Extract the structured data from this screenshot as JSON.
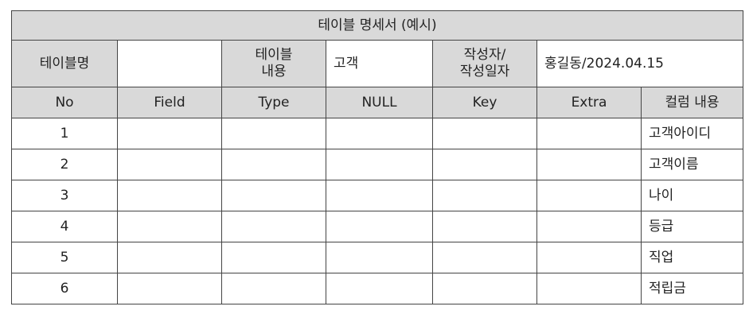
{
  "title": "테이블 명세서 (예시)",
  "meta": {
    "table_name_label": "테이블명",
    "table_name_value": "",
    "table_content_label_line1": "테이블",
    "table_content_label_line2": "내용",
    "table_content_value": "고객",
    "author_label_line1": "작성자/",
    "author_label_line2": "작성일자",
    "author_value": "홍길동/2024.04.15"
  },
  "columns": [
    "No",
    "Field",
    "Type",
    "NULL",
    "Key",
    "Extra",
    "컬럼 내용"
  ],
  "rows": [
    {
      "no": "1",
      "field": "",
      "type": "",
      "null": "",
      "key": "",
      "extra": "",
      "desc": "고객아이디"
    },
    {
      "no": "2",
      "field": "",
      "type": "",
      "null": "",
      "key": "",
      "extra": "",
      "desc": "고객이름"
    },
    {
      "no": "3",
      "field": "",
      "type": "",
      "null": "",
      "key": "",
      "extra": "",
      "desc": "나이"
    },
    {
      "no": "4",
      "field": "",
      "type": "",
      "null": "",
      "key": "",
      "extra": "",
      "desc": "등급"
    },
    {
      "no": "5",
      "field": "",
      "type": "",
      "null": "",
      "key": "",
      "extra": "",
      "desc": "직업"
    },
    {
      "no": "6",
      "field": "",
      "type": "",
      "null": "",
      "key": "",
      "extra": "",
      "desc": "적립금"
    }
  ]
}
